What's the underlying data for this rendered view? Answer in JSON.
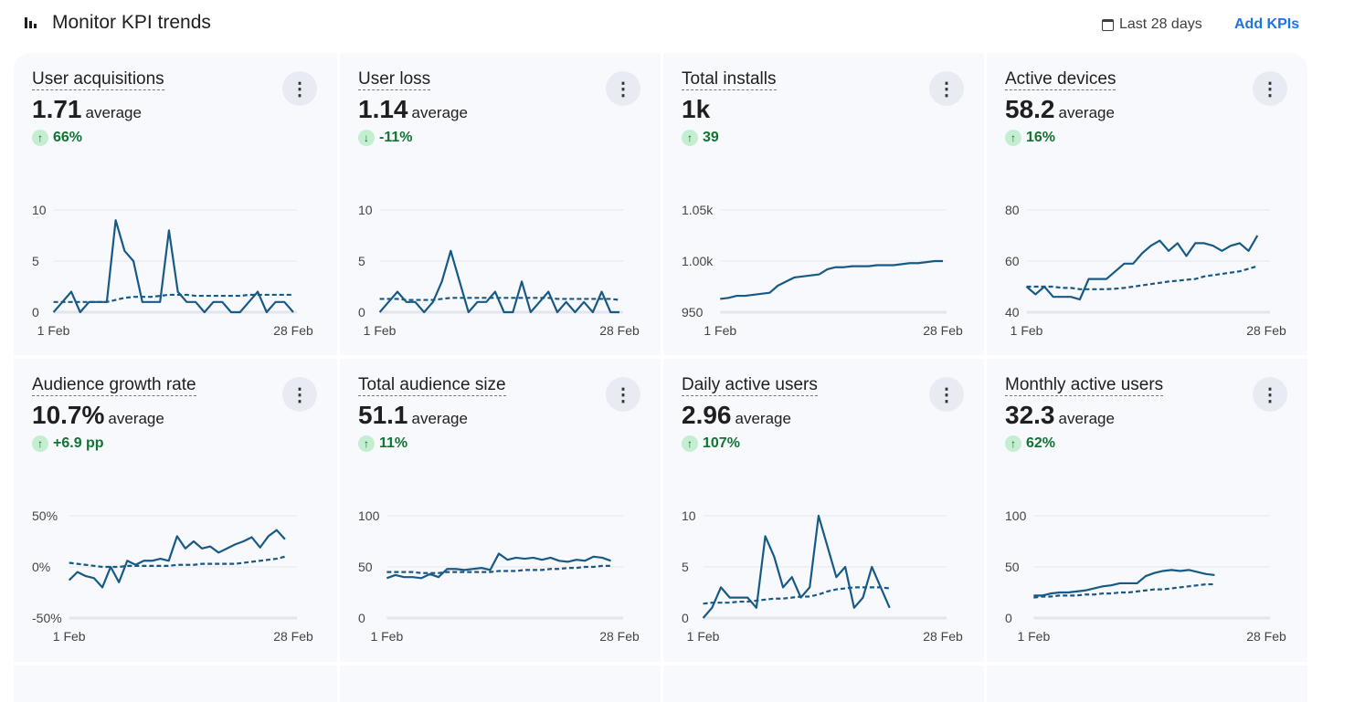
{
  "header": {
    "title": "Monitor KPI trends",
    "icon": "bar-chart-icon",
    "date_range": "Last 28 days",
    "date_icon": "calendar-icon",
    "add_kpis": "Add KPIs"
  },
  "colors": {
    "line": "#175a86",
    "delta_positive": "#137333",
    "chip": "#c4eed0",
    "link": "#1a73e8",
    "card_bg": "#f8f9fd"
  },
  "kpis": [
    {
      "title": "User acquisitions",
      "value": "1.71",
      "suffix": "average",
      "delta": "66%",
      "direction": "up",
      "chart_data": {
        "type": "line",
        "ylim": [
          0,
          10
        ],
        "yticks": [
          "0",
          "5",
          "10"
        ],
        "yvals": [
          0,
          5,
          10
        ],
        "xlabels": [
          "1 Feb",
          "28 Feb"
        ],
        "series": [
          {
            "values": [
              0,
              1,
              2,
              0,
              1,
              1,
              1,
              9,
              6,
              5,
              1,
              1,
              1,
              8,
              2,
              1,
              1,
              0,
              1,
              1,
              0,
              0,
              1,
              2,
              0,
              1,
              1,
              0
            ]
          },
          {
            "style": "dashed",
            "values": [
              1,
              1,
              1,
              1,
              1,
              1,
              1,
              1.2,
              1.4,
              1.5,
              1.5,
              1.5,
              1.6,
              1.7,
              1.7,
              1.7,
              1.6,
              1.6,
              1.6,
              1.6,
              1.6,
              1.6,
              1.7,
              1.7,
              1.7,
              1.7,
              1.7,
              1.7
            ]
          }
        ]
      }
    },
    {
      "title": "User loss",
      "value": "1.14",
      "suffix": "average",
      "delta": "-11%",
      "direction": "down",
      "chart_data": {
        "type": "line",
        "ylim": [
          0,
          10
        ],
        "yticks": [
          "0",
          "5",
          "10"
        ],
        "yvals": [
          0,
          5,
          10
        ],
        "xlabels": [
          "1 Feb",
          "28 Feb"
        ],
        "series": [
          {
            "values": [
              0,
              1,
              2,
              1,
              1,
              0,
              1,
              3,
              6,
              3,
              0,
              1,
              1,
              2,
              0,
              0,
              3,
              0,
              1,
              2,
              0,
              1,
              0,
              1,
              0,
              2,
              0,
              0
            ]
          },
          {
            "style": "dashed",
            "values": [
              1.3,
              1.3,
              1.3,
              1.2,
              1.2,
              1.2,
              1.2,
              1.3,
              1.4,
              1.4,
              1.4,
              1.4,
              1.4,
              1.4,
              1.4,
              1.4,
              1.4,
              1.4,
              1.4,
              1.4,
              1.3,
              1.3,
              1.3,
              1.3,
              1.3,
              1.3,
              1.3,
              1.2
            ]
          }
        ]
      }
    },
    {
      "title": "Total installs",
      "value": "1k",
      "suffix": "",
      "delta": "39",
      "direction": "up",
      "chart_data": {
        "type": "line",
        "ylim": [
          950,
          1050
        ],
        "yticks": [
          "950",
          "1.00k",
          "1.05k"
        ],
        "yvals": [
          950,
          1000,
          1050
        ],
        "xlabels": [
          "1 Feb",
          "28 Feb"
        ],
        "series": [
          {
            "values": [
              963,
              964,
              966,
              966,
              967,
              968,
              969,
              976,
              980,
              984,
              985,
              986,
              987,
              992,
              994,
              994,
              995,
              995,
              995,
              996,
              996,
              996,
              997,
              998,
              998,
              999,
              1000,
              1000
            ]
          }
        ]
      }
    },
    {
      "title": "Active devices",
      "value": "58.2",
      "suffix": "average",
      "delta": "16%",
      "direction": "up",
      "chart_data": {
        "type": "line",
        "ylim": [
          40,
          80
        ],
        "yticks": [
          "40",
          "60",
          "80"
        ],
        "yvals": [
          40,
          60,
          80
        ],
        "xlabels": [
          "1 Feb",
          "28 Feb"
        ],
        "series": [
          {
            "values": [
              50,
              47,
              50,
              46,
              46,
              46,
              45,
              53,
              53,
              53,
              56,
              59,
              59,
              63,
              66,
              68,
              64,
              67,
              62,
              67,
              67,
              66,
              64,
              66,
              67,
              64,
              70
            ]
          },
          {
            "style": "dashed",
            "values": [
              50,
              50,
              50,
              50,
              49.5,
              49.5,
              49,
              49,
              49,
              49,
              49.2,
              49.5,
              50,
              50.5,
              51,
              51.5,
              52,
              52.3,
              52.7,
              53,
              54,
              54.5,
              55,
              55.5,
              56,
              57,
              58
            ]
          }
        ]
      }
    },
    {
      "title": "Audience growth rate",
      "value": "10.7%",
      "suffix": "average",
      "delta": "+6.9 pp",
      "direction": "up",
      "chart_data": {
        "type": "line",
        "ylim": [
          -50,
          50
        ],
        "yticks": [
          "-50%",
          "0%",
          "50%"
        ],
        "yvals": [
          -50,
          0,
          50
        ],
        "xlabels": [
          "1 Feb",
          "28 Feb"
        ],
        "series": [
          {
            "values": [
              -13,
              -5,
              -9,
              -11,
              -20,
              0,
              -15,
              6,
              2,
              6,
              6,
              8,
              6,
              30,
              18,
              25,
              18,
              20,
              14,
              18,
              22,
              25,
              29,
              19,
              30,
              36,
              27
            ]
          },
          {
            "style": "dashed",
            "values": [
              4,
              3,
              2,
              1,
              0,
              0,
              0,
              1,
              1,
              1,
              1,
              1,
              1,
              2,
              2,
              2,
              3,
              3,
              3,
              3,
              3,
              4,
              5,
              6,
              7,
              8,
              10
            ]
          }
        ]
      }
    },
    {
      "title": "Total audience size",
      "value": "51.1",
      "suffix": "average",
      "delta": "11%",
      "direction": "up",
      "chart_data": {
        "type": "line",
        "ylim": [
          0,
          100
        ],
        "yticks": [
          "0",
          "50",
          "100"
        ],
        "yvals": [
          0,
          50,
          100
        ],
        "xlabels": [
          "1 Feb",
          "28 Feb"
        ],
        "series": [
          {
            "values": [
              39,
              42,
              40,
              40,
              39,
              43,
              40,
              48,
              48,
              47,
              48,
              49,
              47,
              63,
              57,
              59,
              58,
              59,
              57,
              59,
              56,
              55,
              57,
              56,
              60,
              59,
              56
            ]
          },
          {
            "style": "dashed",
            "values": [
              45,
              45,
              45,
              45,
              44,
              44,
              44,
              45,
              45,
              45,
              45,
              45,
              45,
              46,
              46,
              46,
              47,
              47,
              47,
              48,
              48,
              49,
              49,
              50,
              50,
              51,
              51
            ]
          }
        ]
      }
    },
    {
      "title": "Daily active users",
      "value": "2.96",
      "suffix": "average",
      "delta": "107%",
      "direction": "up",
      "chart_data": {
        "type": "line",
        "ylim": [
          0,
          10
        ],
        "yticks": [
          "0",
          "5",
          "10"
        ],
        "yvals": [
          0,
          5,
          10
        ],
        "xlabels": [
          "1 Feb",
          "28 Feb"
        ],
        "series": [
          {
            "values": [
              0,
              1,
              3,
              2,
              2,
              2,
              1,
              8,
              6,
              3,
              4,
              2,
              3,
              10,
              7,
              4,
              5,
              1,
              2,
              5,
              3,
              1
            ]
          },
          {
            "style": "dashed",
            "values": [
              1.4,
              1.5,
              1.5,
              1.5,
              1.6,
              1.6,
              1.7,
              1.8,
              1.9,
              1.9,
              2.0,
              2.1,
              2.1,
              2.3,
              2.6,
              2.8,
              2.9,
              3,
              3,
              3,
              3,
              2.9
            ]
          }
        ]
      }
    },
    {
      "title": "Monthly active users",
      "value": "32.3",
      "suffix": "average",
      "delta": "62%",
      "direction": "up",
      "chart_data": {
        "type": "line",
        "ylim": [
          0,
          100
        ],
        "yticks": [
          "0",
          "50",
          "100"
        ],
        "yvals": [
          0,
          50,
          100
        ],
        "xlabels": [
          "1 Feb",
          "28 Feb"
        ],
        "series": [
          {
            "values": [
              22,
              22,
              24,
              25,
              25,
              26,
              27,
              29,
              31,
              32,
              34,
              34,
              34,
              41,
              44,
              46,
              47,
              46,
              47,
              45,
              43,
              42
            ]
          },
          {
            "style": "dashed",
            "values": [
              20,
              21,
              21,
              22,
              22,
              22,
              23,
              23,
              24,
              24,
              25,
              25,
              26,
              27,
              28,
              28,
              29,
              30,
              31,
              32,
              33,
              33
            ]
          }
        ]
      }
    }
  ]
}
